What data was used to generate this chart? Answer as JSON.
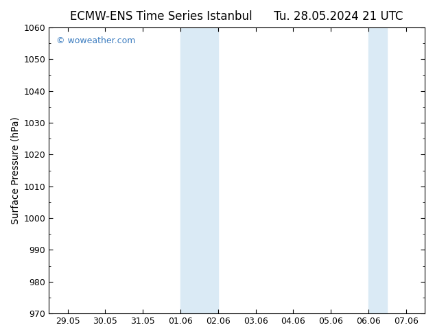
{
  "title_left": "ECMW-ENS Time Series Istanbul",
  "title_right": "Tu. 28.05.2024 21 UTC",
  "ylabel": "Surface Pressure (hPa)",
  "ylim": [
    970,
    1060
  ],
  "yticks": [
    970,
    980,
    990,
    1000,
    1010,
    1020,
    1030,
    1040,
    1050,
    1060
  ],
  "xtick_labels": [
    "29.05",
    "30.05",
    "31.05",
    "01.06",
    "02.06",
    "03.06",
    "04.06",
    "05.06",
    "06.06",
    "07.06"
  ],
  "xtick_positions": [
    0,
    1,
    2,
    3,
    4,
    5,
    6,
    7,
    8,
    9
  ],
  "xlim": [
    -0.5,
    9.5
  ],
  "shaded_regions": [
    {
      "x_start": 3.0,
      "x_end": 4.0
    },
    {
      "x_start": 8.0,
      "x_end": 8.5
    }
  ],
  "shade_color": "#daeaf5",
  "background_color": "#ffffff",
  "watermark_text": "© woweather.com",
  "watermark_color": "#3a7bbf",
  "title_fontsize": 12,
  "axis_fontsize": 10,
  "tick_fontsize": 9,
  "border_color": "#000000"
}
